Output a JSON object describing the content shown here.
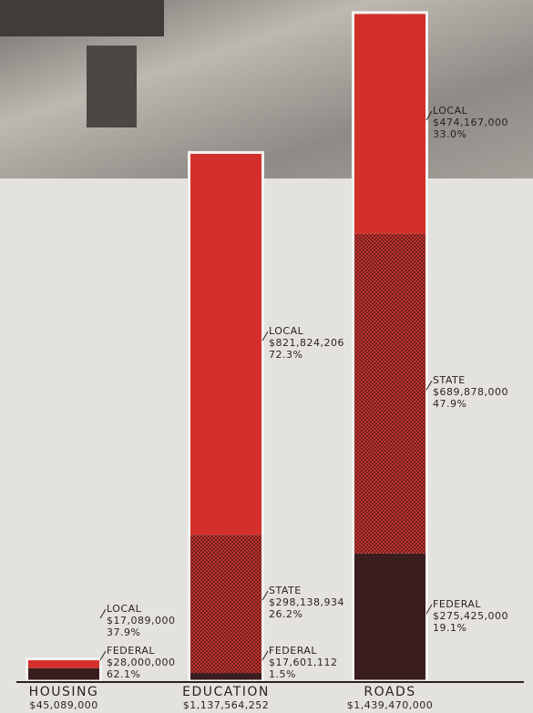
{
  "chart_data": {
    "type": "bar",
    "stacked": true,
    "categories": [
      "HOUSING",
      "EDUCATION",
      "ROADS"
    ],
    "totals": [
      45089000,
      1137564252,
      1439470000
    ],
    "total_labels": [
      "$45,089,000",
      "$1,137,564,252",
      "$1,439,470,000"
    ],
    "ylim": [
      0,
      1440000000
    ],
    "series": [
      {
        "name": "FEDERAL",
        "color": "#3a1d1e",
        "values": [
          28000000,
          17601112,
          275425000
        ],
        "value_labels": [
          "$28,000,000",
          "$17,601,112",
          "$275,425,000"
        ],
        "percent_labels": [
          "62.1%",
          "1.5%",
          "19.1%"
        ]
      },
      {
        "name": "STATE",
        "color": "#b8312f",
        "values": [
          null,
          298138934,
          689878000
        ],
        "value_labels": [
          null,
          "$298,138,934",
          "$689,878,000"
        ],
        "percent_labels": [
          null,
          "26.2%",
          "47.9%"
        ]
      },
      {
        "name": "LOCAL",
        "color": "#d3302c",
        "values": [
          17089000,
          821824206,
          474167000
        ],
        "value_labels": [
          "$17,089,000",
          "$821,824,206",
          "$474,167,000"
        ],
        "percent_labels": [
          "37.9%",
          "72.3%",
          "33.0%"
        ]
      }
    ]
  }
}
